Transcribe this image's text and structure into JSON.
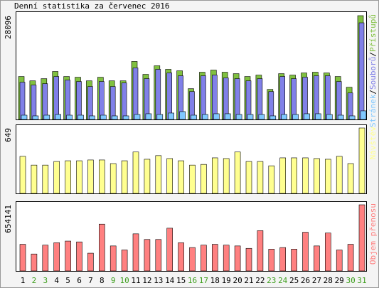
{
  "chart_data": [
    {
      "type": "bar",
      "title": "Denní statistika za červenec 2016",
      "legend_separator": "/",
      "ylim": [
        0,
        28096
      ],
      "yticks": [
        28096
      ],
      "series": [
        {
          "name": "Stránek",
          "color": "#80c8ff",
          "values": [
            1160,
            970,
            1160,
            1360,
            1160,
            1160,
            970,
            1160,
            970,
            970,
            1360,
            1550,
            1360,
            1740,
            2130,
            1160,
            1360,
            1550,
            1550,
            1360,
            1360,
            1360,
            970,
            1360,
            1360,
            1550,
            1550,
            1360,
            1160,
            970,
            2325
          ]
        },
        {
          "name": "Souborů",
          "color": "#8080e8",
          "values": [
            10078,
            9302,
            9690,
            11628,
            10659,
            10271,
            8915,
            10271,
            8915,
            9884,
            13954,
            11047,
            13566,
            12597,
            11822,
            7558,
            11822,
            12016,
            11240,
            11047,
            10465,
            11047,
            7558,
            11628,
            11047,
            11434,
            11822,
            11822,
            10271,
            7171,
            26163
          ]
        },
        {
          "name": "Přístupů",
          "color": "#80c040",
          "values": [
            11628,
            10465,
            11047,
            12985,
            11628,
            11434,
            10465,
            11434,
            10465,
            10465,
            15698,
            12209,
            14535,
            13566,
            13178,
            8333,
            12791,
            13372,
            12791,
            12403,
            11628,
            12016,
            8140,
            12403,
            12016,
            12597,
            12791,
            12597,
            11628,
            8721,
            28096
          ]
        }
      ]
    },
    {
      "type": "bar",
      "ylim": [
        0,
        649
      ],
      "yticks": [
        649
      ],
      "series": [
        {
          "name": "Návštěv",
          "color": "#ffff90",
          "values": [
            368,
            281,
            281,
            317,
            324,
            324,
            332,
            332,
            296,
            324,
            411,
            339,
            375,
            346,
            324,
            281,
            288,
            353,
            346,
            411,
            317,
            317,
            274,
            353,
            353,
            353,
            346,
            339,
            368,
            296,
            649
          ]
        }
      ]
    },
    {
      "type": "bar",
      "ylim": [
        0,
        654141
      ],
      "yticks": [
        654141
      ],
      "categories": [
        "1",
        "2",
        "3",
        "4",
        "5",
        "6",
        "7",
        "8",
        "9",
        "10",
        "11",
        "12",
        "13",
        "14",
        "15",
        "16",
        "17",
        "18",
        "19",
        "20",
        "21",
        "22",
        "23",
        "24",
        "25",
        "26",
        "27",
        "28",
        "29",
        "30",
        "31"
      ],
      "category_colors": [
        "#000000",
        "#40a020",
        "#40a020",
        "#000000",
        "#000000",
        "#000000",
        "#000000",
        "#000000",
        "#40a020",
        "#40a020",
        "#000000",
        "#000000",
        "#000000",
        "#000000",
        "#000000",
        "#40a020",
        "#40a020",
        "#000000",
        "#000000",
        "#000000",
        "#000000",
        "#000000",
        "#40a020",
        "#40a020",
        "#000000",
        "#000000",
        "#000000",
        "#000000",
        "#000000",
        "#40a020",
        "#40a020"
      ],
      "series": [
        {
          "name": "Objem přenosu",
          "color": "#ff8080",
          "values": [
            263241,
            167517,
            255264,
            279195,
            295149,
            287172,
            175494,
            462666,
            247287,
            207402,
            366942,
            311103,
            311103,
            422781,
            279195,
            231333,
            255264,
            263241,
            255264,
            247287,
            223356,
            398850,
            215379,
            231333,
            215379,
            382896,
            247287,
            374919,
            207402,
            263241,
            654141
          ]
        }
      ]
    }
  ]
}
